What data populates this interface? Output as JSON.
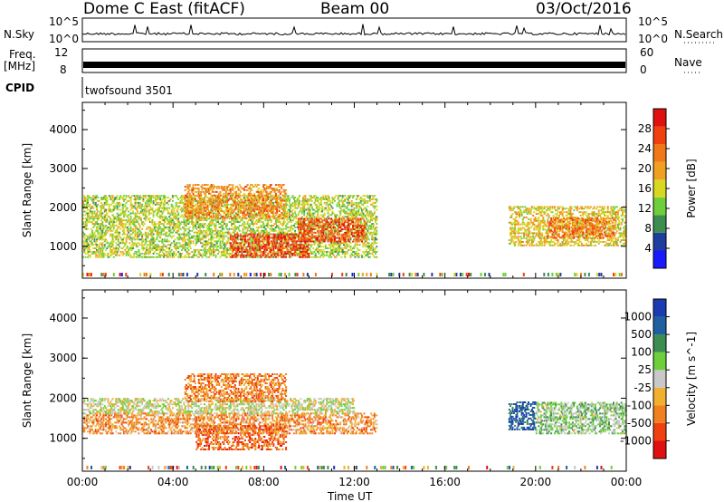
{
  "header": {
    "station": "Dome C East (fitACF)",
    "beam": "Beam 00",
    "date": "03/Oct/2016"
  },
  "strips": {
    "nsky_label": "N.Sky",
    "nsky_ticks": [
      "10^5",
      "10^0"
    ],
    "nsearch_label": "N.Search",
    "nsearch_ticks": [
      "10^5",
      "10^0"
    ],
    "freq_label_line1": "Freq.",
    "freq_label_line2": "[MHz]",
    "freq_ticks": [
      "12",
      "8"
    ],
    "nave_label": "Nave",
    "nave_ticks": [
      "60",
      "0"
    ],
    "cpid_label": "CPID",
    "cpid_value": "twofsound 3501"
  },
  "colors": {
    "power_scale": [
      "#1a1aff",
      "#1f3d9e",
      "#3d8c52",
      "#6ecf3a",
      "#d8d820",
      "#f0a020",
      "#f07818",
      "#f04010",
      "#e01010"
    ],
    "velocity_scale": [
      "#e01010",
      "#f04010",
      "#f08020",
      "#f0b030",
      "#c8c8c8",
      "#6ecf3a",
      "#3d8c52",
      "#2060a0",
      "#1a3cb0"
    ]
  },
  "chart_data": [
    {
      "type": "heatmap",
      "name": "power-panel",
      "ylabel": "Slant Range [km]",
      "xlabel": "Time UT",
      "x_ticks": [
        "00:00",
        "04:00",
        "08:00",
        "12:00",
        "16:00",
        "20:00",
        "00:00"
      ],
      "y_ticks": [
        "1000",
        "2000",
        "3000",
        "4000"
      ],
      "xlim_hours": [
        0,
        24
      ],
      "ylim_km": [
        180,
        4700
      ],
      "colorbar_label": "Power [dB]",
      "colorbar_ticks": [
        "4",
        "8",
        "12",
        "16",
        "20",
        "24",
        "28"
      ],
      "colorbar_range": [
        0,
        30
      ],
      "bands": [
        {
          "t0": 0.0,
          "t1": 13.0,
          "r0": 700,
          "r1": 2300,
          "level": 0.45
        },
        {
          "t0": 6.5,
          "t1": 10.0,
          "r0": 700,
          "r1": 1300,
          "level": 0.9
        },
        {
          "t0": 9.5,
          "t1": 12.5,
          "r0": 1100,
          "r1": 1700,
          "level": 0.85
        },
        {
          "t0": 4.5,
          "t1": 9.0,
          "r0": 1700,
          "r1": 2600,
          "level": 0.7
        },
        {
          "t0": 18.8,
          "t1": 24.0,
          "r0": 1000,
          "r1": 2000,
          "level": 0.55
        },
        {
          "t0": 20.5,
          "t1": 23.5,
          "r0": 1200,
          "r1": 1700,
          "level": 0.75
        }
      ]
    },
    {
      "type": "heatmap",
      "name": "velocity-panel",
      "ylabel": "Slant Range [km]",
      "xlabel": "Time UT",
      "x_ticks": [
        "00:00",
        "04:00",
        "08:00",
        "12:00",
        "16:00",
        "20:00",
        "00:00"
      ],
      "y_ticks": [
        "1000",
        "2000",
        "3000",
        "4000"
      ],
      "xlim_hours": [
        0,
        24
      ],
      "ylim_km": [
        180,
        4700
      ],
      "colorbar_label": "Velocity [m s^-1]",
      "colorbar_ticks": [
        "1000",
        "500",
        "100",
        "25",
        "-25",
        "-100",
        "-500",
        "-1000"
      ],
      "colorbar_range": [
        -1000,
        1000
      ],
      "bands": [
        {
          "t0": 0.0,
          "t1": 13.0,
          "r0": 1100,
          "r1": 1600,
          "level": 0.3
        },
        {
          "t0": 0.0,
          "t1": 12.0,
          "r0": 1600,
          "r1": 2000,
          "level": 0.5
        },
        {
          "t0": 5.0,
          "t1": 9.0,
          "r0": 700,
          "r1": 1300,
          "level": 0.2
        },
        {
          "t0": 4.5,
          "t1": 9.0,
          "r0": 1900,
          "r1": 2600,
          "level": 0.25
        },
        {
          "t0": 18.8,
          "t1": 20.0,
          "r0": 1200,
          "r1": 1900,
          "level": 0.9
        },
        {
          "t0": 20.0,
          "t1": 24.0,
          "r0": 1100,
          "r1": 1900,
          "level": 0.6
        }
      ]
    }
  ]
}
